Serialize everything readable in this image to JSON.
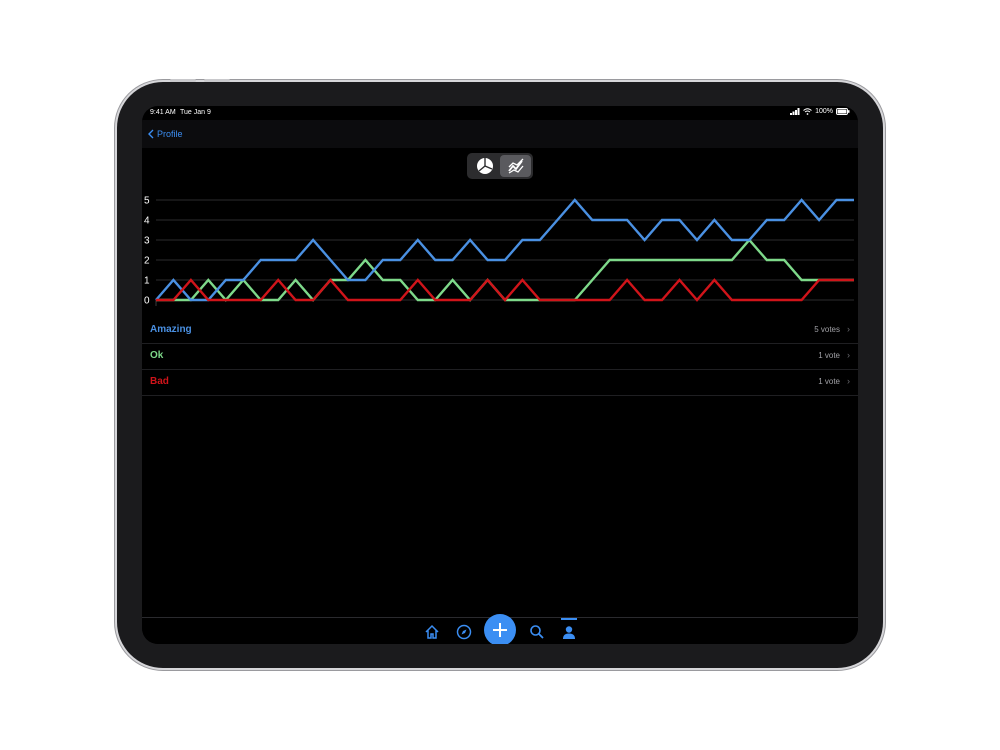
{
  "status_bar": {
    "time": "9:41 AM",
    "date": "Tue Jan 9",
    "battery": "100%"
  },
  "nav": {
    "back_label": "Profile"
  },
  "segmented": {
    "options": [
      "pie-chart-icon",
      "line-chart-icon"
    ],
    "selected": "line-chart-icon"
  },
  "colors": {
    "amazing": "#4a90e2",
    "ok": "#7ed98a",
    "bad": "#d0141a",
    "accent": "#3b8ef3"
  },
  "chart_data": {
    "type": "line",
    "x": [
      0,
      1,
      2,
      3,
      4,
      5,
      6,
      7,
      8,
      9,
      10,
      11,
      12,
      13,
      14,
      15,
      16,
      17,
      18,
      19,
      20,
      21,
      22,
      23,
      24,
      25,
      26,
      27,
      28,
      29,
      30,
      31,
      32,
      33,
      34,
      35,
      36,
      37,
      38,
      39,
      40
    ],
    "ylim": [
      0,
      5
    ],
    "yticks": [
      "0",
      "1",
      "2",
      "3",
      "4",
      "5"
    ],
    "grid": true,
    "series": [
      {
        "name": "Amazing",
        "values": [
          0,
          1,
          0,
          0,
          1,
          1,
          2,
          2,
          2,
          3,
          2,
          1,
          1,
          2,
          2,
          3,
          2,
          2,
          3,
          2,
          2,
          3,
          3,
          4,
          5,
          4,
          4,
          4,
          3,
          4,
          4,
          3,
          4,
          3,
          3,
          4,
          4,
          5,
          4,
          5,
          5
        ]
      },
      {
        "name": "Ok",
        "values": [
          0,
          0,
          0,
          1,
          0,
          1,
          0,
          0,
          1,
          0,
          1,
          1,
          2,
          1,
          1,
          0,
          0,
          1,
          0,
          1,
          0,
          0,
          0,
          0,
          0,
          1,
          2,
          2,
          2,
          2,
          2,
          2,
          2,
          2,
          3,
          2,
          2,
          1,
          1,
          1,
          1
        ]
      },
      {
        "name": "Bad",
        "values": [
          0,
          0,
          1,
          0,
          0,
          0,
          0,
          1,
          0,
          0,
          1,
          0,
          0,
          0,
          0,
          1,
          0,
          0,
          0,
          1,
          0,
          1,
          0,
          0,
          0,
          0,
          0,
          1,
          0,
          0,
          1,
          0,
          1,
          0,
          0,
          0,
          0,
          0,
          1,
          1,
          1
        ]
      }
    ]
  },
  "rows": [
    {
      "label": "Amazing",
      "count": "5 votes"
    },
    {
      "label": "Ok",
      "count": "1 vote"
    },
    {
      "label": "Bad",
      "count": "1 vote"
    }
  ],
  "tabbar": {
    "items": [
      "home-icon",
      "compass-icon",
      "add-icon",
      "search-icon",
      "profile-icon"
    ],
    "selected": "profile-icon"
  }
}
